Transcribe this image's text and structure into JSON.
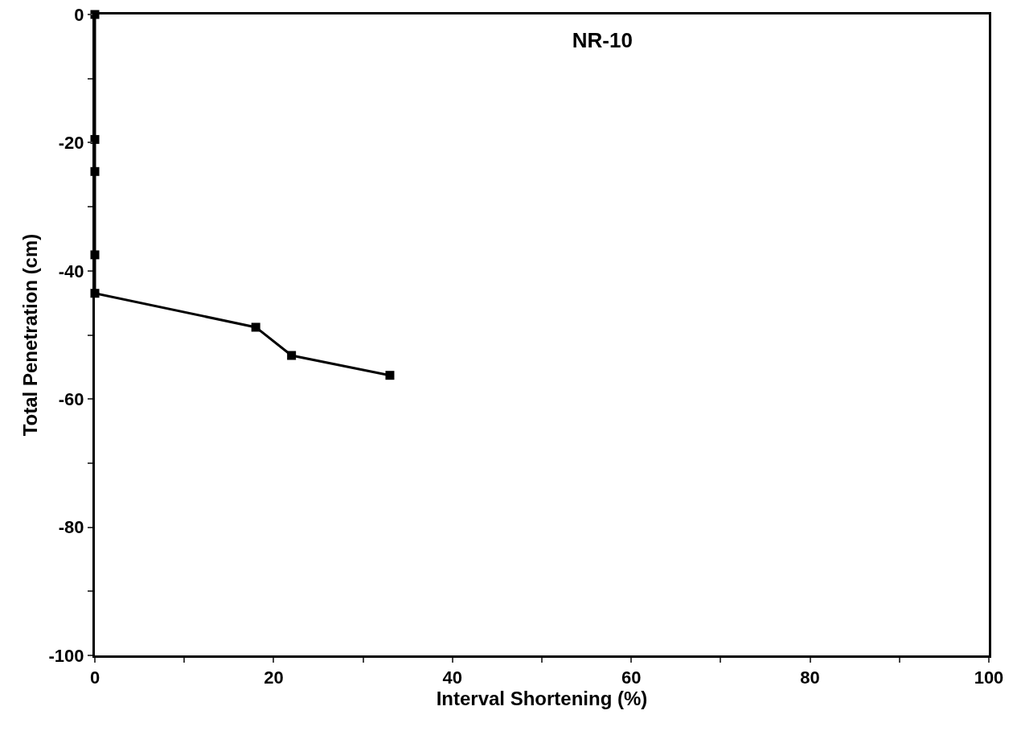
{
  "chart_data": {
    "type": "line",
    "title": "NR-10",
    "xlabel": "Interval Shortening (%)",
    "ylabel": "Total Penetration (cm)",
    "x": [
      0,
      0,
      0,
      0,
      0,
      18,
      22,
      33
    ],
    "values": [
      0,
      -19.5,
      -24.5,
      -37.5,
      -43.5,
      -48.8,
      -53.2,
      -56.3
    ],
    "color": "#000000",
    "marker": "square",
    "line_style": "solid",
    "grid": false,
    "xlim": [
      0,
      100
    ],
    "xticks": [
      0,
      {
        "value": 10,
        "label": null
      },
      20,
      {
        "value": 30,
        "label": null
      },
      40,
      {
        "value": 50,
        "label": null
      },
      60,
      {
        "value": 70,
        "label": null
      },
      80,
      {
        "value": 90,
        "label": null
      },
      100
    ],
    "ylim": [
      -100,
      0
    ],
    "yticks": [
      -100,
      {
        "value": -90,
        "label": null
      },
      -80,
      {
        "value": -70,
        "label": null
      },
      -60,
      {
        "value": -50,
        "label": null
      },
      -40,
      {
        "value": -30,
        "label": null
      },
      -20,
      {
        "value": -10,
        "label": null
      },
      0
    ]
  }
}
